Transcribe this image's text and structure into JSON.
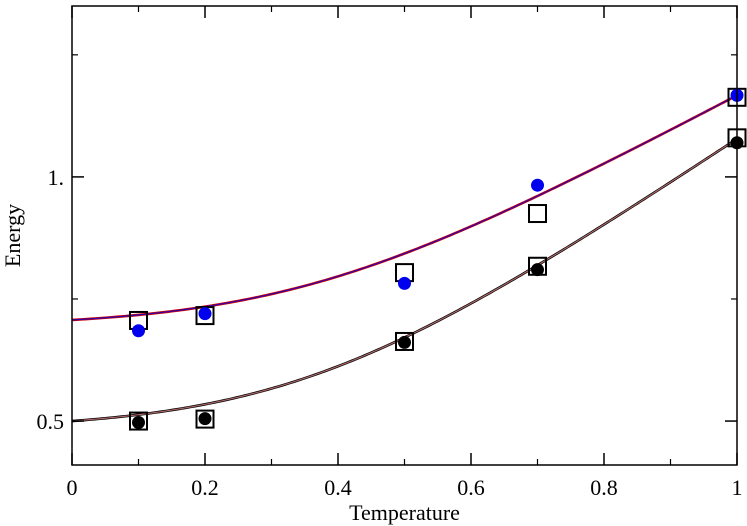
{
  "chart_data": {
    "type": "scatter",
    "title": "",
    "xlabel": "Temperature",
    "ylabel": "Energy",
    "xlim": [
      0,
      1
    ],
    "ylim": [
      0.41,
      1.35
    ],
    "x_ticks": [
      0,
      0.2,
      0.4,
      0.6,
      0.8,
      1
    ],
    "x_tick_labels": [
      "0",
      "0.2",
      "0.4",
      "0.6",
      "0.8",
      "1"
    ],
    "y_ticks": [
      0.5,
      1.0
    ],
    "y_tick_labels": [
      "0.5",
      "1."
    ],
    "grid": false,
    "legend": "none",
    "series": [
      {
        "name": "upper-curve",
        "kind": "line",
        "color": "#cc0000",
        "overlay_color": "#3300aa",
        "function": {
          "a": 0.707,
          "b": 1.167,
          "c": 3.2
        }
      },
      {
        "name": "lower-curve",
        "kind": "line",
        "color": "#000000",
        "overlay_color": "#aa6666",
        "function": {
          "a": 0.5,
          "b": 1.078,
          "c": 3.2
        }
      },
      {
        "name": "upper-open-squares",
        "kind": "marker",
        "marker": "open-square",
        "color": "#000000",
        "x": [
          0.1,
          0.2,
          0.5,
          0.7,
          1.0
        ],
        "y": [
          0.706,
          0.716,
          0.804,
          0.925,
          1.163
        ]
      },
      {
        "name": "upper-blue-circles",
        "kind": "marker",
        "marker": "filled-circle",
        "color": "#0000ee",
        "x": [
          0.1,
          0.2,
          0.5,
          0.7,
          1.0
        ],
        "y": [
          0.685,
          0.72,
          0.782,
          0.983,
          1.167
        ]
      },
      {
        "name": "lower-open-squares",
        "kind": "marker",
        "marker": "open-square",
        "color": "#000000",
        "x": [
          0.1,
          0.2,
          0.5,
          0.7,
          1.0
        ],
        "y": [
          0.5,
          0.504,
          0.663,
          0.817,
          1.08
        ]
      },
      {
        "name": "lower-black-circles",
        "kind": "marker",
        "marker": "filled-circle",
        "color": "#000000",
        "x": [
          0.1,
          0.2,
          0.5,
          0.7,
          1.0
        ],
        "y": [
          0.497,
          0.505,
          0.661,
          0.81,
          1.07
        ]
      }
    ]
  }
}
